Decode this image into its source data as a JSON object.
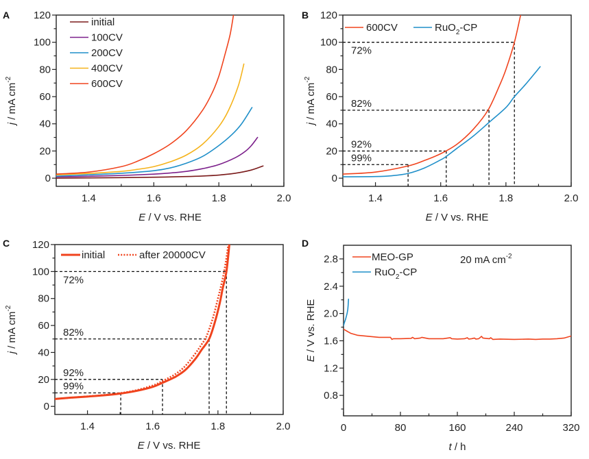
{
  "chart_data": [
    {
      "panel": "A",
      "type": "line",
      "title": "",
      "xlabel_italic": "E",
      "xlabel_rest": " / V vs. RHE",
      "ylabel_italic": "j",
      "ylabel_rest": " / mA cm",
      "ylabel_sup": "-2",
      "xlim": [
        1.3,
        2.0
      ],
      "ylim": [
        -6,
        120
      ],
      "xticks": [
        1.4,
        1.6,
        1.8,
        2.0
      ],
      "xtick_labels": [
        "1.4",
        "1.6",
        "1.8",
        "2.0"
      ],
      "xminor": [
        1.5,
        1.7,
        1.9
      ],
      "yticks": [
        0,
        20,
        40,
        60,
        80,
        100,
        120
      ],
      "ytick_labels": [
        "0",
        "20",
        "40",
        "60",
        "80",
        "100",
        "120"
      ],
      "yminor": [
        10,
        30,
        50,
        70,
        90,
        110
      ],
      "legend_position": "top-left",
      "series": [
        {
          "name": "initial",
          "color": "#7a1a1a",
          "x": [
            1.3,
            1.4,
            1.5,
            1.6,
            1.7,
            1.75,
            1.8,
            1.85,
            1.9,
            1.936
          ],
          "y": [
            0,
            0.2,
            0.4,
            0.7,
            1.2,
            1.6,
            2.3,
            3.6,
            6.0,
            9.0
          ]
        },
        {
          "name": "100CV",
          "color": "#7b1e8a",
          "x": [
            1.3,
            1.4,
            1.5,
            1.6,
            1.65,
            1.7,
            1.75,
            1.8,
            1.85,
            1.88,
            1.9,
            1.919
          ],
          "y": [
            1.0,
            1.4,
            2.0,
            3.0,
            3.8,
            5.0,
            7.0,
            10.0,
            15.0,
            19.5,
            24.0,
            30.0
          ]
        },
        {
          "name": "200CV",
          "color": "#1f8fc9",
          "x": [
            1.3,
            1.4,
            1.5,
            1.6,
            1.65,
            1.7,
            1.75,
            1.8,
            1.84,
            1.87,
            1.902
          ],
          "y": [
            1.5,
            2.5,
            3.6,
            5.5,
            7.5,
            11.0,
            16.0,
            24.0,
            32.0,
            40.0,
            52.0
          ]
        },
        {
          "name": "400CV",
          "color": "#f5b31b",
          "x": [
            1.3,
            1.4,
            1.5,
            1.55,
            1.6,
            1.65,
            1.7,
            1.75,
            1.8,
            1.83,
            1.86,
            1.877
          ],
          "y": [
            2.5,
            3.5,
            5.0,
            6.5,
            8.5,
            12.0,
            17.0,
            25.0,
            38.0,
            50.0,
            68.0,
            84.0
          ]
        },
        {
          "name": "600CV",
          "color": "#f0431d",
          "x": [
            1.3,
            1.4,
            1.5,
            1.55,
            1.6,
            1.65,
            1.7,
            1.75,
            1.78,
            1.8,
            1.82,
            1.835,
            1.845
          ],
          "y": [
            3.0,
            4.5,
            8.5,
            12.5,
            18.0,
            25.0,
            35.0,
            50.0,
            63.0,
            75.0,
            92.0,
            106.0,
            120.0
          ]
        }
      ]
    },
    {
      "panel": "B",
      "type": "line",
      "title": "",
      "xlabel_italic": "E",
      "xlabel_rest": " / V vs. RHE",
      "ylabel_italic": "j",
      "ylabel_rest": " / mA cm",
      "ylabel_sup": "-2",
      "xlim": [
        1.3,
        2.0
      ],
      "ylim": [
        -6,
        120
      ],
      "xticks": [
        1.4,
        1.6,
        1.8,
        2.0
      ],
      "xtick_labels": [
        "1.4",
        "1.6",
        "1.8",
        "2.0"
      ],
      "xminor": [
        1.5,
        1.7,
        1.9
      ],
      "yticks": [
        0,
        20,
        40,
        60,
        80,
        100,
        120
      ],
      "ytick_labels": [
        "0",
        "20",
        "40",
        "60",
        "80",
        "100",
        "120"
      ],
      "yminor": [
        10,
        30,
        50,
        70,
        90,
        110
      ],
      "legend_position": "top",
      "series": [
        {
          "name": "600CV",
          "name_main": "600CV",
          "name_sub": "",
          "name_tail": "",
          "color": "#f0431d",
          "x": [
            1.3,
            1.4,
            1.5,
            1.55,
            1.6,
            1.65,
            1.7,
            1.745,
            1.78,
            1.8,
            1.826,
            1.845
          ],
          "y": [
            3.0,
            4.5,
            9.0,
            13.0,
            18.0,
            25.0,
            36.0,
            50.0,
            68.0,
            80.0,
            100.0,
            120.0
          ]
        },
        {
          "name": "RuO2-CP",
          "name_main": "RuO",
          "name_sub": "2",
          "name_tail": "-CP",
          "color": "#1f8fc9",
          "x": [
            1.3,
            1.4,
            1.45,
            1.5,
            1.55,
            1.6,
            1.617,
            1.65,
            1.7,
            1.748,
            1.8,
            1.826,
            1.86,
            1.905
          ],
          "y": [
            1.0,
            1.2,
            1.8,
            3.5,
            7.5,
            13.5,
            16.0,
            22.0,
            31.0,
            41.0,
            52.0,
            60.0,
            69.0,
            82.0
          ]
        }
      ],
      "guides": [
        {
          "j": 10,
          "E": 1.5,
          "label": "99%",
          "label_pos": "above"
        },
        {
          "j": 20,
          "E": 1.617,
          "label": "92%",
          "label_pos": "above"
        },
        {
          "j": 50,
          "E": 1.748,
          "label": "82%",
          "label_pos": "above"
        },
        {
          "j": 100,
          "E": 1.826,
          "label": "72%",
          "label_pos": "below"
        }
      ]
    },
    {
      "panel": "C",
      "type": "line",
      "title": "",
      "xlabel_italic": "E",
      "xlabel_rest": " / V vs. RHE",
      "ylabel_italic": "j",
      "ylabel_rest": " / mA cm",
      "ylabel_sup": "-2",
      "xlim": [
        1.3,
        2.0
      ],
      "ylim": [
        -6,
        120
      ],
      "xticks": [
        1.4,
        1.6,
        1.8,
        2.0
      ],
      "xtick_labels": [
        "1.4",
        "1.6",
        "1.8",
        "2.0"
      ],
      "xminor": [
        1.5,
        1.7,
        1.9
      ],
      "yticks": [
        0,
        20,
        40,
        60,
        80,
        100,
        120
      ],
      "ytick_labels": [
        "0",
        "20",
        "40",
        "60",
        "80",
        "100",
        "120"
      ],
      "yminor": [
        10,
        30,
        50,
        70,
        90,
        110
      ],
      "legend_position": "top",
      "series": [
        {
          "name": "initial",
          "style": "solid",
          "color": "#f0431d",
          "x": [
            1.3,
            1.35,
            1.4,
            1.45,
            1.5,
            1.55,
            1.6,
            1.63,
            1.67,
            1.7,
            1.73,
            1.75,
            1.773,
            1.79,
            1.805,
            1.815,
            1.826,
            1.835
          ],
          "y": [
            5.5,
            6.5,
            7.3,
            8.2,
            9.5,
            11.5,
            14.5,
            17.5,
            22.0,
            27.0,
            35.0,
            42.0,
            50.0,
            62.0,
            76.0,
            88.0,
            100.0,
            120.0
          ]
        },
        {
          "name": "after 20000CV",
          "style": "dotted",
          "color": "#f0431d",
          "x": [
            1.3,
            1.35,
            1.4,
            1.45,
            1.5,
            1.55,
            1.6,
            1.63,
            1.67,
            1.7,
            1.73,
            1.75,
            1.765,
            1.785,
            1.8,
            1.812,
            1.822,
            1.832
          ],
          "y": [
            5.5,
            6.5,
            7.4,
            8.4,
            9.8,
            12.0,
            15.5,
            18.8,
            24.0,
            30.0,
            39.0,
            46.0,
            52.0,
            66.0,
            80.0,
            92.0,
            104.0,
            120.0
          ]
        }
      ],
      "guides": [
        {
          "j": 10,
          "E": 1.502,
          "label": "99%",
          "label_pos": "above"
        },
        {
          "j": 20,
          "E": 1.63,
          "label": "92%",
          "label_pos": "above"
        },
        {
          "j": 50,
          "E": 1.773,
          "label": "82%",
          "label_pos": "above"
        },
        {
          "j": 100,
          "E": 1.826,
          "label": "72%",
          "label_pos": "below"
        }
      ]
    },
    {
      "panel": "D",
      "type": "line",
      "title": "",
      "xlabel_italic": "t",
      "xlabel_rest": " / h",
      "ylabel_italic": "E",
      "ylabel_rest": " / V vs. RHE",
      "ylabel_sup": "",
      "xlim": [
        0,
        320
      ],
      "ylim": [
        0.5,
        3.0
      ],
      "xticks": [
        0,
        80,
        160,
        240,
        320
      ],
      "xtick_labels": [
        "0",
        "80",
        "160",
        "240",
        "320"
      ],
      "xminor": [
        40,
        120,
        200,
        280
      ],
      "yticks": [
        0.8,
        1.2,
        1.6,
        2.0,
        2.4,
        2.8
      ],
      "ytick_labels": [
        "0.8",
        "1.2",
        "1.6",
        "2.0",
        "2.4",
        "2.8"
      ],
      "yminor": [
        0.6,
        1.0,
        1.4,
        1.8,
        2.2,
        2.6
      ],
      "legend_position": "top-left",
      "annotation": {
        "main": "20 mA cm",
        "sup": "-2"
      },
      "series": [
        {
          "name": "MEO-GP",
          "name_main": "MEO-GP",
          "name_sub": "",
          "name_tail": "",
          "color": "#f0431d",
          "x": [
            0,
            5,
            10,
            20,
            30,
            40,
            50,
            60,
            66,
            68,
            70,
            80,
            95,
            97,
            100,
            108,
            110,
            120,
            140,
            150,
            152,
            160,
            170,
            174,
            176,
            180,
            184,
            186,
            190,
            194,
            196,
            200,
            205,
            207,
            210,
            220,
            240,
            260,
            270,
            280,
            290,
            300,
            310,
            320
          ],
          "y": [
            1.77,
            1.74,
            1.71,
            1.68,
            1.67,
            1.66,
            1.65,
            1.65,
            1.65,
            1.62,
            1.63,
            1.63,
            1.635,
            1.65,
            1.63,
            1.64,
            1.65,
            1.63,
            1.63,
            1.645,
            1.63,
            1.625,
            1.63,
            1.645,
            1.625,
            1.63,
            1.64,
            1.625,
            1.63,
            1.665,
            1.64,
            1.635,
            1.63,
            1.645,
            1.62,
            1.625,
            1.62,
            1.625,
            1.62,
            1.625,
            1.625,
            1.63,
            1.64,
            1.67
          ]
        },
        {
          "name": "RuO2-CP",
          "name_main": "RuO",
          "name_sub": "2",
          "name_tail": "-CP",
          "color": "#1f8fc9",
          "x": [
            0,
            1,
            2,
            3,
            4,
            5,
            6,
            6.5,
            7
          ],
          "y": [
            1.82,
            1.86,
            1.89,
            1.92,
            1.96,
            2.0,
            2.06,
            2.12,
            2.21
          ]
        }
      ]
    }
  ]
}
